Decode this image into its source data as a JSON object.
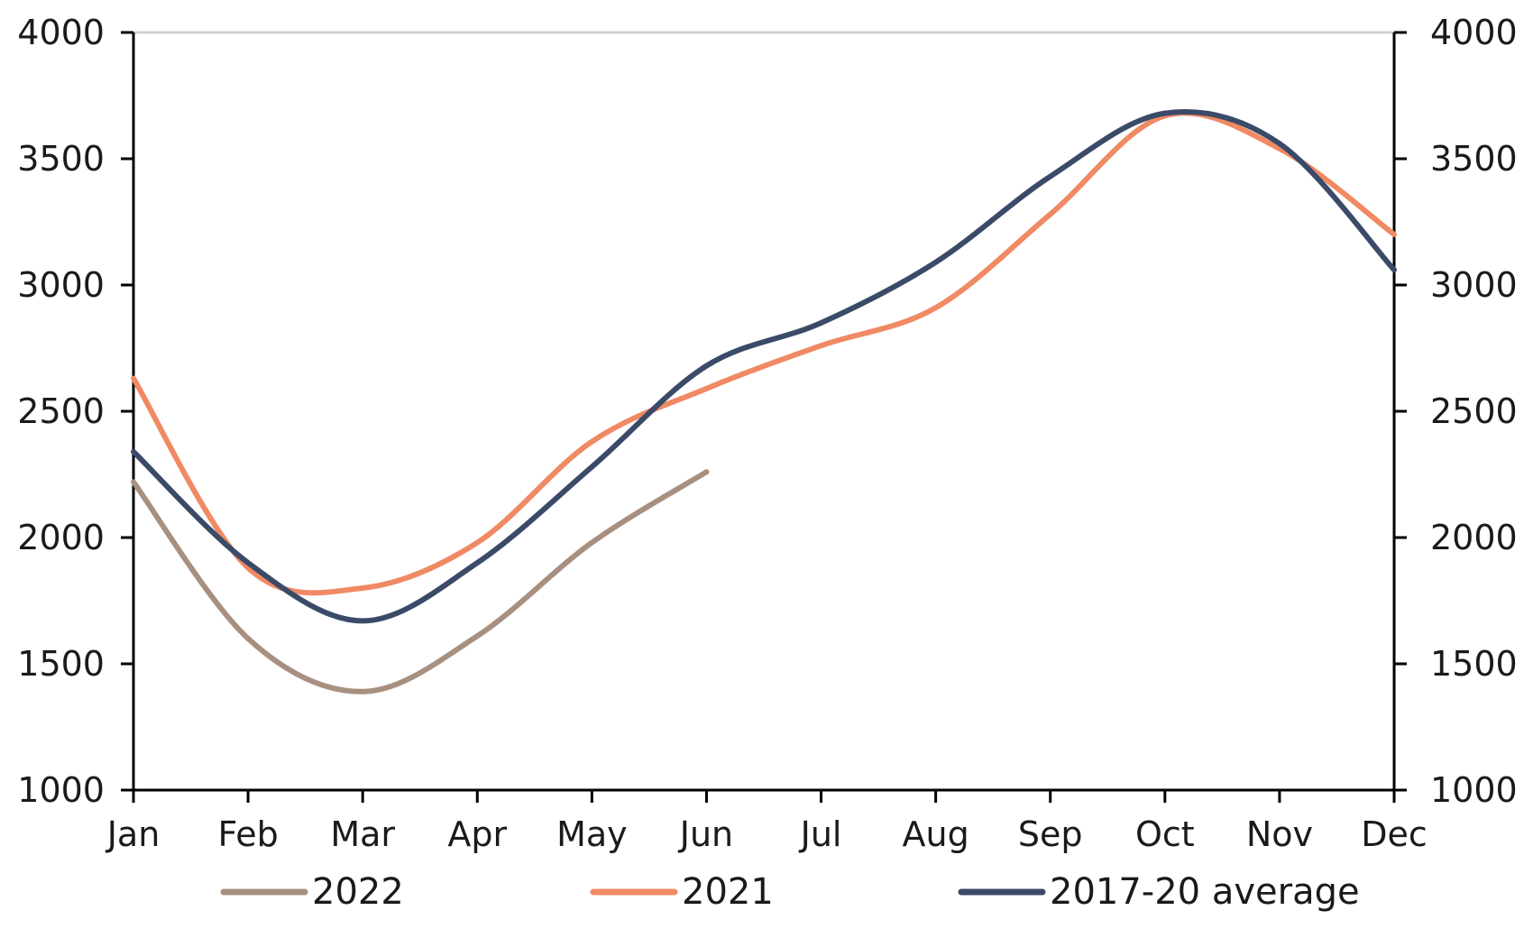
{
  "chart_data": {
    "type": "line",
    "categories": [
      "Jan",
      "Feb",
      "Mar",
      "Apr",
      "May",
      "Jun",
      "Jul",
      "Aug",
      "Sep",
      "Oct",
      "Nov",
      "Dec"
    ],
    "ylim": [
      1000,
      4000
    ],
    "y2lim": [
      1000,
      4000
    ],
    "yticks": [
      "1000",
      "1500",
      "2000",
      "2500",
      "3000",
      "3500",
      "4000"
    ],
    "grid": false,
    "legend": "bottom",
    "title": "",
    "xlabel": "",
    "ylabel": "",
    "series": [
      {
        "name": "2022",
        "color": "#a89080",
        "values": [
          2220,
          1600,
          1390,
          1610,
          1980,
          2260,
          null,
          null,
          null,
          null,
          null,
          null
        ]
      },
      {
        "name": "2021",
        "color": "#f08a64",
        "values": [
          2630,
          1880,
          1800,
          1980,
          2380,
          2590,
          2760,
          2910,
          3280,
          3670,
          3540,
          3200
        ]
      },
      {
        "name": "2017-20 average",
        "color": "#3a4a68",
        "values": [
          2340,
          1900,
          1670,
          1900,
          2280,
          2680,
          2850,
          3090,
          3430,
          3680,
          3560,
          3060
        ]
      }
    ]
  }
}
